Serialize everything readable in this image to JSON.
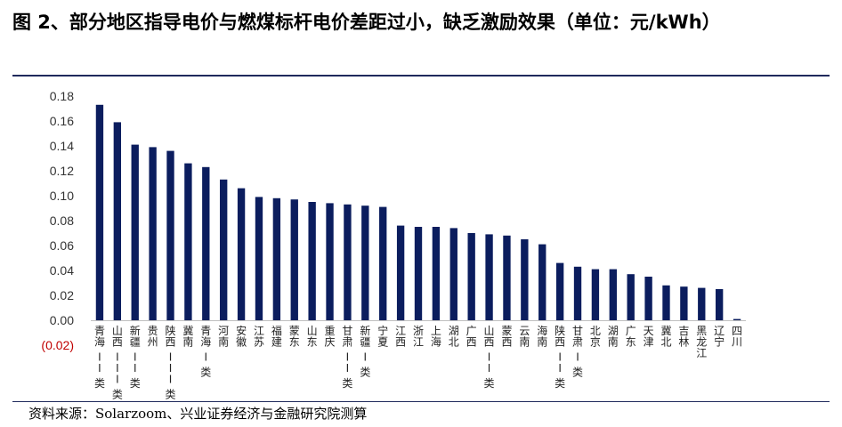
{
  "figure": {
    "title": "图 2、部分地区指导电价与燃煤标杆电价差距过小，缺乏激励效果（单位：元/kWh）",
    "source": "资料来源：Solarzoom、兴业证券经济与金融研究院测算"
  },
  "colors": {
    "bar": "#0b1d5e",
    "negative_tick": "#c00000",
    "rule": "#1f2a5c"
  },
  "chart_data": {
    "type": "bar",
    "title": "",
    "xlabel": "",
    "ylabel": "",
    "ylim": [
      -0.02,
      0.18
    ],
    "yticks": [
      {
        "value": 0.18,
        "label": "0.18"
      },
      {
        "value": 0.16,
        "label": "0.16"
      },
      {
        "value": 0.14,
        "label": "0.14"
      },
      {
        "value": 0.12,
        "label": "0.12"
      },
      {
        "value": 0.1,
        "label": "0.10"
      },
      {
        "value": 0.08,
        "label": "0.08"
      },
      {
        "value": 0.06,
        "label": "0.06"
      },
      {
        "value": 0.04,
        "label": "0.04"
      },
      {
        "value": 0.02,
        "label": "0.02"
      },
      {
        "value": 0.0,
        "label": "0.00"
      },
      {
        "value": -0.02,
        "label": "(0.02)"
      }
    ],
    "grid": false,
    "legend": "none",
    "categories": [
      "青海 II 类",
      "山西 III 类",
      "新疆 II 类",
      "贵州",
      "陕西 III 类",
      "冀南",
      "青海 I 类",
      "河南",
      "安徽",
      "江苏",
      "福建",
      "蒙东",
      "山东",
      "重庆",
      "甘肃 II 类",
      "新疆 I 类",
      "宁夏",
      "江西",
      "浙江",
      "上海",
      "湖北",
      "广西",
      "山西 II 类",
      "蒙西",
      "云南",
      "海南",
      "陕西 II 类",
      "甘肃 I 类",
      "北京",
      "湖南",
      "广东",
      "天津",
      "冀北",
      "吉林",
      "黑龙江",
      "辽宁",
      "四川"
    ],
    "values": [
      0.173,
      0.159,
      0.141,
      0.139,
      0.136,
      0.126,
      0.123,
      0.113,
      0.106,
      0.099,
      0.098,
      0.097,
      0.095,
      0.094,
      0.093,
      0.092,
      0.091,
      0.076,
      0.075,
      0.075,
      0.074,
      0.07,
      0.069,
      0.068,
      0.065,
      0.061,
      0.046,
      0.043,
      0.041,
      0.041,
      0.037,
      0.035,
      0.028,
      0.027,
      0.026,
      0.025,
      0.001
    ]
  }
}
